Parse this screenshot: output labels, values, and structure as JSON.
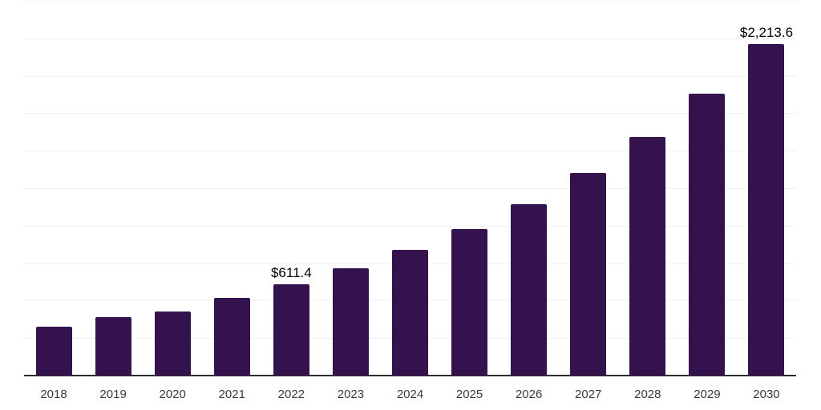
{
  "chart_data": {
    "type": "bar",
    "title": "",
    "xlabel": "",
    "ylabel": "",
    "categories": [
      "2018",
      "2019",
      "2020",
      "2021",
      "2022",
      "2023",
      "2024",
      "2025",
      "2026",
      "2027",
      "2028",
      "2029",
      "2030"
    ],
    "values": [
      325,
      390,
      425,
      520,
      611.4,
      715,
      840,
      975,
      1145,
      1350,
      1590,
      1880,
      2213.6
    ],
    "bar_labels": [
      "",
      "",
      "",
      "",
      "$611.4",
      "",
      "",
      "",
      "",
      "",
      "",
      "",
      "$2,213.6"
    ],
    "ylim": [
      0,
      2500
    ],
    "gridline_step": 250,
    "grid": "horizontal",
    "y_axis_tick_labels_visible": false,
    "legend_position": "none",
    "bar_color": "#33124d"
  },
  "style": {
    "background_color": "#ffffff",
    "gridline_color": "#f1f1f1",
    "axis_line_color": "#2d2d2d",
    "tick_label_color": "#3a3a3a",
    "data_label_color": "#000000"
  }
}
